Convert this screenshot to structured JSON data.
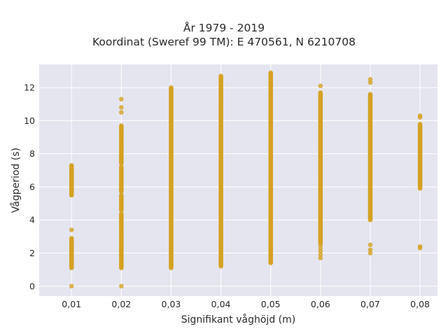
{
  "chart_data": {
    "type": "scatter",
    "title_lines": [
      "År 1979 - 2019",
      "Koordinat (Sweref 99 TM): E 470561, N 6210708"
    ],
    "xlabel": "Signifikant våghöjd (m)",
    "ylabel": "Vågperiod (s)",
    "x_categories": [
      "0,01",
      "0,02",
      "0,03",
      "0,04",
      "0,05",
      "0,06",
      "0,07",
      "0,08"
    ],
    "x_values": [
      0.01,
      0.02,
      0.03,
      0.04,
      0.05,
      0.06,
      0.07,
      0.08
    ],
    "xlim": [
      0.0035,
      0.0835
    ],
    "ylim": [
      -0.6,
      13.4
    ],
    "y_ticks": [
      0,
      2,
      4,
      6,
      8,
      10,
      12
    ],
    "y_tick_labels": [
      "0",
      "2",
      "4",
      "6",
      "8",
      "10",
      "12"
    ],
    "grid": true,
    "marker_color": "#D4A122",
    "background_color": "#E5E5EF",
    "series": [
      {
        "x": 0.01,
        "ranges": [
          [
            1.1,
            2.9
          ],
          [
            5.5,
            7.3
          ]
        ],
        "points": [
          0.0,
          3.4,
          5.5,
          5.7,
          6.2,
          6.5,
          6.7,
          7.0,
          7.2
        ]
      },
      {
        "x": 0.02,
        "ranges": [
          [
            1.1,
            4.4
          ],
          [
            4.6,
            5.5
          ],
          [
            5.7,
            7.2
          ],
          [
            7.4,
            9.7
          ]
        ],
        "points": [
          0.0,
          10.5,
          10.8,
          11.3
        ]
      },
      {
        "x": 0.03,
        "ranges": [
          [
            1.1,
            12.0
          ]
        ],
        "points": []
      },
      {
        "x": 0.04,
        "ranges": [
          [
            1.2,
            12.7
          ]
        ],
        "points": []
      },
      {
        "x": 0.05,
        "ranges": [
          [
            1.4,
            12.9
          ]
        ],
        "points": []
      },
      {
        "x": 0.06,
        "ranges": [
          [
            2.6,
            11.7
          ]
        ],
        "points": [
          1.7,
          1.9,
          2.1,
          2.3,
          2.5,
          12.1
        ]
      },
      {
        "x": 0.07,
        "ranges": [
          [
            4.0,
            11.6
          ]
        ],
        "points": [
          2.0,
          2.2,
          2.5,
          12.3,
          12.5
        ]
      },
      {
        "x": 0.08,
        "ranges": [
          [
            5.9,
            9.8
          ]
        ],
        "points": [
          2.3,
          2.4,
          10.2,
          10.3
        ]
      }
    ]
  }
}
